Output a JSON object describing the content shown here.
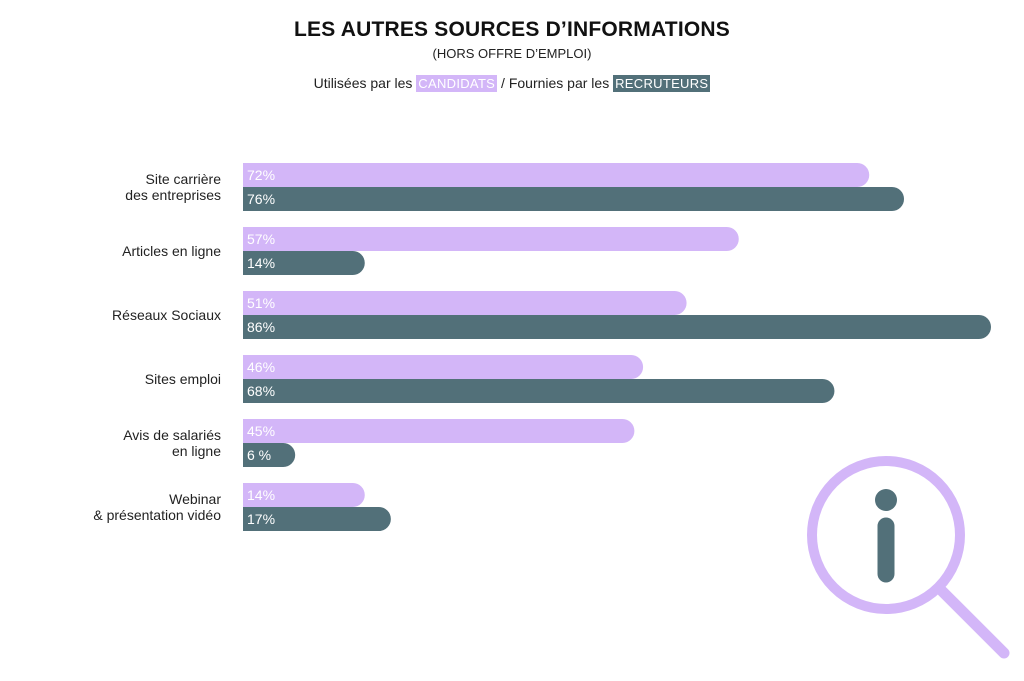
{
  "header": {
    "title": "LES AUTRES SOURCES D’INFORMATIONS",
    "subtitle": "(HORS OFFRE D’EMPLOI)",
    "legend_prefix_1": "Utilisées par les",
    "legend_tag_1": "CANDIDATS",
    "legend_sep": "/",
    "legend_prefix_2": "Fournies par les",
    "legend_tag_2": "RECRUTEURS"
  },
  "colors": {
    "candidats": "#d3b6f8",
    "recruteurs": "#527079",
    "icon": "#d3b6f8",
    "icon_inner": "#527079"
  },
  "icon": {
    "name": "info-magnifier-icon"
  },
  "chart_data": {
    "type": "bar",
    "orientation": "horizontal",
    "title": "LES AUTRES SOURCES D’INFORMATIONS",
    "subtitle": "(HORS OFFRE D’EMPLOI)",
    "categories": [
      [
        "Site carrière",
        "des entreprises"
      ],
      [
        "Articles en ligne"
      ],
      [
        "Réseaux Sociaux"
      ],
      [
        "Sites emploi"
      ],
      [
        "Avis de salariés",
        "en ligne"
      ],
      [
        "Webinar",
        "& présentation vidéo"
      ]
    ],
    "series": [
      {
        "name": "CANDIDATS",
        "values": [
          72,
          57,
          51,
          46,
          45,
          14
        ],
        "labels": [
          "72%",
          "57%",
          "51%",
          "46%",
          "45%",
          "14%"
        ]
      },
      {
        "name": "RECRUTEURS",
        "values": [
          76,
          14,
          86,
          68,
          6,
          17
        ],
        "labels": [
          "76%",
          "14%",
          "86%",
          "68%",
          "6 %",
          "17%"
        ]
      }
    ],
    "xlim": [
      0,
      86
    ],
    "grid": false,
    "legend": "top-center"
  }
}
